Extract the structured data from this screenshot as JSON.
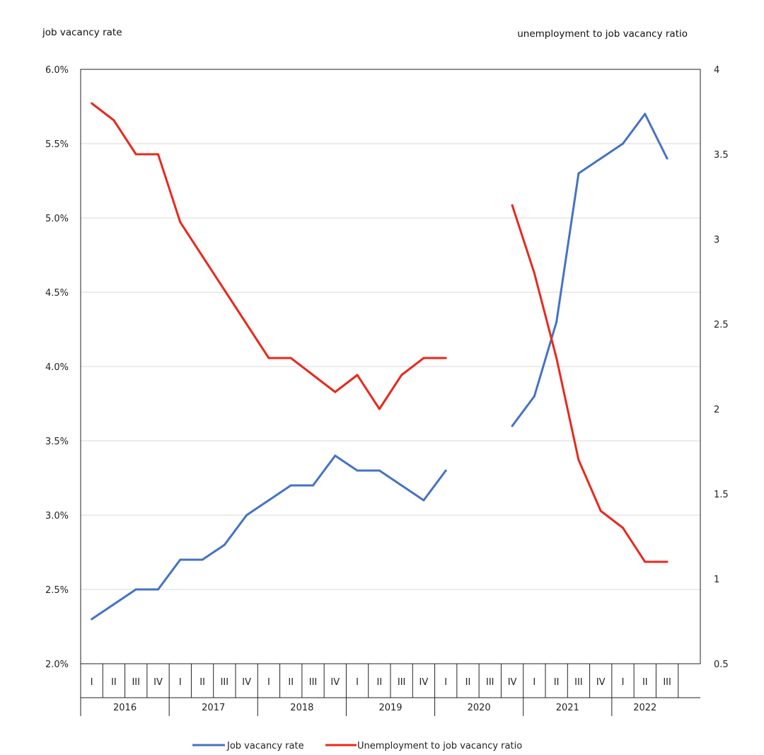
{
  "chart_data": {
    "type": "line",
    "left_axis_title": "job vacancy rate",
    "right_axis_title": "unemployment to job vacancy ratio",
    "left_ticks": [
      "2.0%",
      "2.5%",
      "3.0%",
      "3.5%",
      "4.0%",
      "4.5%",
      "5.0%",
      "5.5%",
      "6.0%"
    ],
    "right_ticks": [
      "0.5",
      "1",
      "1.5",
      "2",
      "2.5",
      "3",
      "3.5",
      "4"
    ],
    "left_ylim": [
      2.0,
      6.0
    ],
    "right_ylim": [
      0.5,
      4.0
    ],
    "grid": true,
    "quarters": [
      "I",
      "II",
      "III",
      "IV",
      "I",
      "II",
      "III",
      "IV",
      "I",
      "II",
      "III",
      "IV",
      "I",
      "II",
      "III",
      "IV",
      "I",
      "II",
      "III",
      "IV",
      "I",
      "II",
      "III",
      "IV",
      "I",
      "II",
      "III"
    ],
    "years": [
      "2016",
      "2017",
      "2018",
      "2019",
      "2020",
      "2021",
      "2022"
    ],
    "series": [
      {
        "name": "Job vacancy rate",
        "axis": "left",
        "color": "#4472C4",
        "values": [
          2.3,
          2.4,
          2.5,
          2.5,
          2.7,
          2.7,
          2.8,
          3.0,
          3.1,
          3.2,
          3.2,
          3.4,
          3.3,
          3.3,
          3.2,
          3.1,
          3.3,
          null,
          null,
          3.6,
          3.8,
          4.3,
          5.3,
          5.4,
          5.5,
          5.7,
          5.4
        ]
      },
      {
        "name": "Unemployment to job vacancy ratio",
        "axis": "right",
        "color": "#E8291C",
        "values": [
          3.8,
          3.7,
          3.5,
          3.5,
          3.1,
          2.9,
          2.7,
          2.5,
          2.3,
          2.3,
          2.2,
          2.1,
          2.2,
          2.0,
          2.2,
          2.3,
          2.3,
          null,
          null,
          3.2,
          2.8,
          2.3,
          1.7,
          1.4,
          1.3,
          1.1,
          1.1
        ]
      }
    ],
    "legend_position": "bottom-center"
  }
}
